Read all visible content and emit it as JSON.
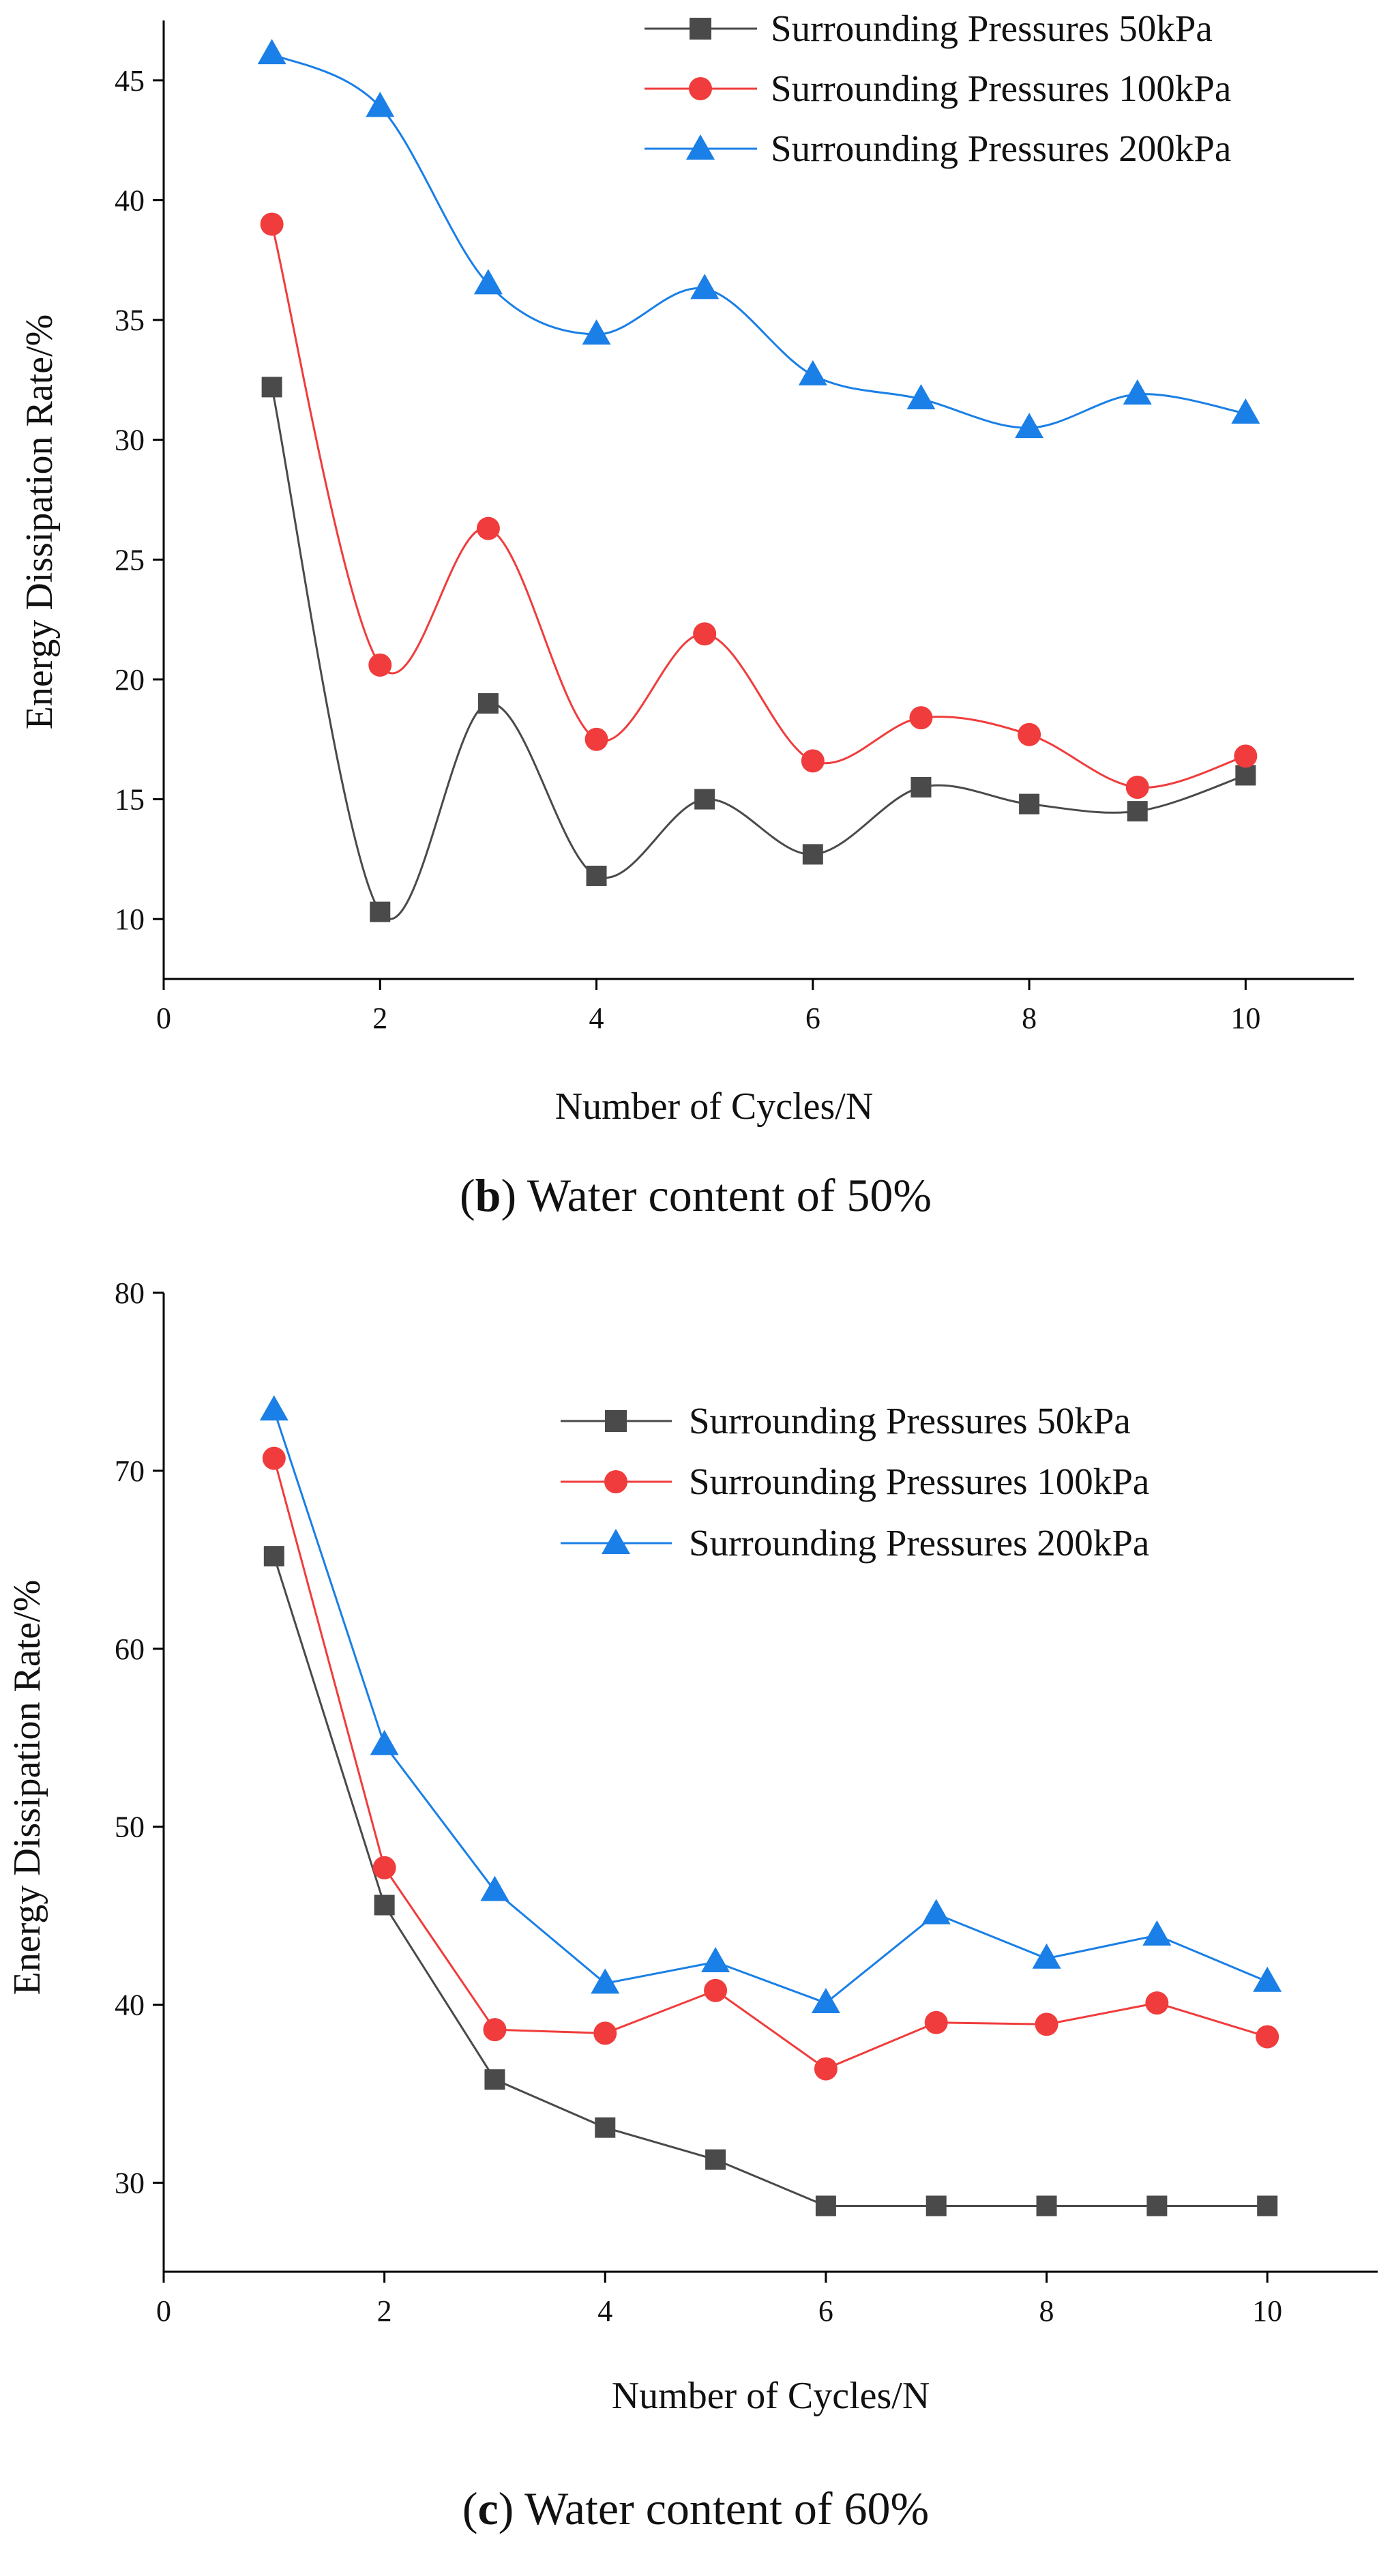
{
  "chart_data": [
    {
      "type": "line",
      "caption": {
        "letter": "b",
        "text": "Water content of 50%"
      },
      "xlabel": "Number of Cycles/N",
      "ylabel": "Energy Dissipation Rate/%",
      "xlim": [
        0,
        11
      ],
      "ylim": [
        7.5,
        47.5
      ],
      "xticks": [
        0,
        2,
        4,
        6,
        8,
        10
      ],
      "yticks": [
        10,
        15,
        20,
        25,
        30,
        35,
        40,
        45
      ],
      "smooth": true,
      "legend_position": "top-right",
      "x": [
        1,
        2,
        3,
        4,
        5,
        6,
        7,
        8,
        9,
        10
      ],
      "series": [
        {
          "name": "Surrounding Pressures 50kPa",
          "color": "#4a4a4a",
          "marker": "square",
          "values": [
            32.2,
            10.3,
            19.0,
            11.8,
            15.0,
            12.7,
            15.5,
            14.8,
            14.5,
            16.0
          ]
        },
        {
          "name": "Surrounding Pressures 100kPa",
          "color": "#f03c3c",
          "marker": "circle",
          "values": [
            39.0,
            20.6,
            26.3,
            17.5,
            21.9,
            16.6,
            18.4,
            17.7,
            15.5,
            16.8
          ]
        },
        {
          "name": "Surrounding Pressures 200kPa",
          "color": "#1a7fe6",
          "marker": "triangle",
          "values": [
            46.1,
            43.9,
            36.5,
            34.4,
            36.3,
            32.7,
            31.7,
            30.5,
            31.9,
            31.1
          ]
        }
      ]
    },
    {
      "type": "line",
      "caption": {
        "letter": "c",
        "text": "Water content of 60%"
      },
      "xlabel": "Number of Cycles/N",
      "ylabel": "Energy Dissipation Rate/%",
      "xlim": [
        0,
        11
      ],
      "ylim": [
        25,
        80
      ],
      "xticks": [
        0,
        2,
        4,
        6,
        8,
        10
      ],
      "yticks": [
        30,
        40,
        50,
        60,
        70,
        80
      ],
      "smooth": false,
      "legend_position": "top-right",
      "x": [
        1,
        2,
        3,
        4,
        5,
        6,
        7,
        8,
        9,
        10
      ],
      "series": [
        {
          "name": "Surrounding Pressures 50kPa",
          "color": "#4a4a4a",
          "marker": "square",
          "values": [
            65.2,
            45.6,
            35.8,
            33.1,
            31.3,
            28.7,
            28.7,
            28.7,
            28.7,
            28.7
          ]
        },
        {
          "name": "Surrounding Pressures 100kPa",
          "color": "#f03c3c",
          "marker": "circle",
          "values": [
            70.7,
            47.7,
            38.6,
            38.4,
            40.8,
            36.4,
            39.0,
            38.9,
            40.1,
            38.2
          ]
        },
        {
          "name": "Surrounding Pressures 200kPa",
          "color": "#1a7fe6",
          "marker": "triangle",
          "values": [
            73.4,
            54.6,
            46.4,
            41.2,
            42.4,
            40.1,
            45.1,
            42.6,
            43.9,
            41.3
          ]
        }
      ]
    }
  ]
}
